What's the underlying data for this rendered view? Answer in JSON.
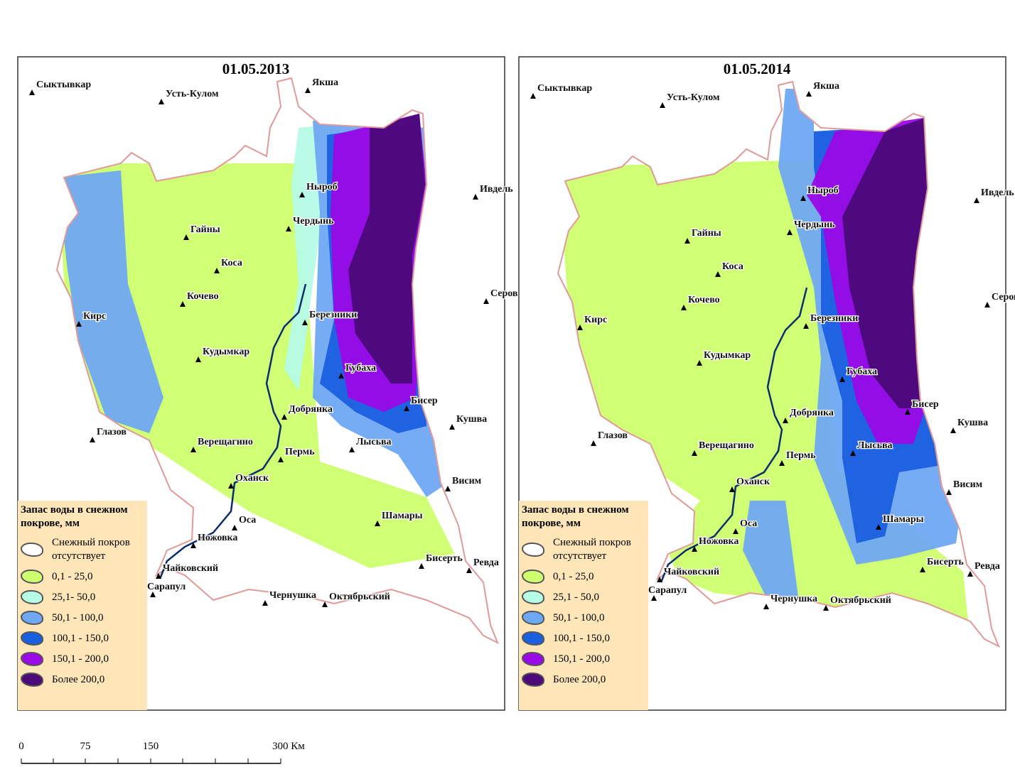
{
  "panels": [
    {
      "title": "01.05.2013",
      "cities": [
        "Сыктывкар",
        "Усть-Кулом",
        "Якша",
        "Ныроб",
        "Ивдель",
        "Гайны",
        "Чердынь",
        "Коса",
        "Кочево",
        "Серов",
        "Кирс",
        "Березники",
        "Кудымкар",
        "Губаха",
        "Бисер",
        "Добрянка",
        "Кушва",
        "Глазов",
        "Верещагино",
        "Пермь",
        "Лысьва",
        "Оханск",
        "Висим",
        "Оса",
        "Шамары",
        "Ножовка",
        "Бисерть",
        "Ревда",
        "Чайковский",
        "Сарапул",
        "Чернушка",
        "Октябрьский"
      ],
      "legend": {
        "title": "Запас воды в снежном покрове, мм",
        "items": [
          "Снежный покров отсутствует",
          "0,1 - 25,0",
          "25,1- 50,0",
          "50,1 - 100,0",
          "100,1 - 150,0",
          "150,1 - 200,0",
          "Более 200,0"
        ]
      }
    },
    {
      "title": "01.05.2014",
      "cities": [
        "Сыктывкар",
        "Усть-Кулом",
        "Якша",
        "Ныроб",
        "Ивдель",
        "Гайны",
        "Чердынь",
        "Коса",
        "Кочево",
        "Серов",
        "Кирс",
        "Березники",
        "Кудымкар",
        "Губаха",
        "Бисер",
        "Добрянка",
        "Кушва",
        "Глазов",
        "Верещагино",
        "Пермь",
        "Лысьва",
        "Оханск",
        "Висим",
        "Оса",
        "Шамары",
        "Ножовка",
        "Бисерть",
        "Ревда",
        "Чайковский",
        "Сарапул",
        "Чернушка",
        "Октябрьский"
      ],
      "legend": {
        "title": "Запас воды в снежном покрове, мм",
        "items": [
          "Снежный покров отсутствует",
          "0,1 - 25,0",
          "25,1 - 50,0",
          "50,1 - 100,0",
          "100,1 - 150,0",
          "150,1 - 200,0",
          "Более 200,0"
        ]
      }
    }
  ],
  "scale_bar": {
    "labels": [
      "0",
      "75",
      "150",
      "300 Км"
    ]
  }
}
